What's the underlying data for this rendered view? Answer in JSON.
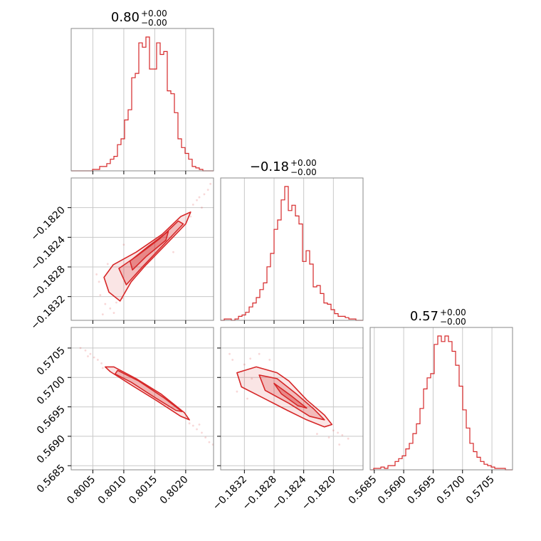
{
  "colors": {
    "accent": "#d62728",
    "frame": "#888888",
    "grid": "#c8c8c8"
  },
  "chart_data": {
    "type": "corner",
    "parameters": [
      "p1",
      "p2",
      "p3"
    ],
    "titles": [
      {
        "value": "0.80",
        "upper": "+0.00",
        "lower": "−0.00"
      },
      {
        "value": "−0.18",
        "upper": "+0.00",
        "lower": "−0.00"
      },
      {
        "value": "0.57",
        "upper": "+0.00",
        "lower": "−0.00"
      }
    ],
    "ranges": [
      [
        0.80015,
        0.80245
      ],
      [
        -0.18352,
        -0.1816
      ],
      [
        0.56843,
        0.57085
      ]
    ],
    "ticks": [
      {
        "values": [
          0.8005,
          0.801,
          0.8015,
          0.802
        ],
        "labels": [
          "0.8005",
          "0.8010",
          "0.8015",
          "0.8020"
        ]
      },
      {
        "values": [
          -0.1832,
          -0.1828,
          -0.1824,
          -0.182
        ],
        "labels": [
          "−0.1832",
          "−0.1828",
          "−0.1824",
          "−0.1820"
        ]
      },
      {
        "values": [
          0.5685,
          0.569,
          0.5695,
          0.57,
          0.5705
        ],
        "labels": [
          "0.5685",
          "0.5690",
          "0.5695",
          "0.5700",
          "0.5705"
        ]
      }
    ],
    "histograms": [
      {
        "edges_start": 0.80015,
        "bin_width": 5.75e-05,
        "counts": [
          0,
          0,
          0,
          0,
          0,
          0,
          1,
          1,
          3,
          3,
          5,
          8,
          10,
          18,
          22,
          35,
          42,
          64,
          67,
          88,
          85,
          92,
          70,
          70,
          88,
          80,
          82,
          55,
          53,
          40,
          22,
          16,
          12,
          8,
          3,
          2,
          1,
          0,
          0,
          0
        ]
      },
      {
        "edges_start": -0.18352,
        "bin_width": 4.8e-05,
        "counts": [
          0,
          1,
          1,
          0,
          1,
          3,
          4,
          6,
          10,
          13,
          17,
          23,
          28,
          40,
          50,
          68,
          75,
          90,
          100,
          82,
          86,
          78,
          72,
          44,
          52,
          42,
          25,
          26,
          20,
          13,
          12,
          8,
          5,
          3,
          3,
          2,
          1,
          1,
          0,
          0
        ]
      },
      {
        "edges_start": 0.56843,
        "bin_width": 6.05e-05,
        "counts": [
          0,
          1,
          1,
          2,
          1,
          3,
          3,
          6,
          8,
          10,
          15,
          19,
          26,
          33,
          44,
          58,
          66,
          69,
          90,
          96,
          92,
          96,
          92,
          85,
          75,
          60,
          43,
          30,
          19,
          13,
          9,
          6,
          4,
          3,
          2,
          1,
          1,
          1,
          0,
          0
        ]
      }
    ],
    "contours_2d": [
      {
        "x_param": "p1",
        "y_param": "p2",
        "levels": [
          {
            "fill": 0.12,
            "points": [
              [
                0.80068,
                -0.18294
              ],
              [
                0.80083,
                -0.18277
              ],
              [
                0.8012,
                -0.1826
              ],
              [
                0.80162,
                -0.18236
              ],
              [
                0.80192,
                -0.18212
              ],
              [
                0.80208,
                -0.18206
              ],
              [
                0.802,
                -0.18222
              ],
              [
                0.8017,
                -0.18248
              ],
              [
                0.80135,
                -0.18278
              ],
              [
                0.80112,
                -0.183
              ],
              [
                0.80094,
                -0.18326
              ],
              [
                0.80076,
                -0.18314
              ]
            ]
          },
          {
            "fill": 0.22,
            "points": [
              [
                0.80092,
                -0.18282
              ],
              [
                0.8012,
                -0.18266
              ],
              [
                0.80158,
                -0.18242
              ],
              [
                0.80188,
                -0.18218
              ],
              [
                0.80196,
                -0.18222
              ],
              [
                0.80162,
                -0.18252
              ],
              [
                0.8013,
                -0.1828
              ],
              [
                0.80104,
                -0.18304
              ]
            ]
          },
          {
            "fill": 0.35,
            "points": [
              [
                0.8011,
                -0.18272
              ],
              [
                0.8014,
                -0.18252
              ],
              [
                0.80172,
                -0.18232
              ],
              [
                0.80168,
                -0.18244
              ],
              [
                0.80136,
                -0.18266
              ],
              [
                0.80114,
                -0.18284
              ]
            ]
          }
        ],
        "scatter": [
          [
            0.8006,
            -0.183
          ],
          [
            0.80062,
            -0.18318
          ],
          [
            0.8007,
            -0.1833
          ],
          [
            0.80078,
            -0.18336
          ],
          [
            0.80084,
            -0.18342
          ],
          [
            0.80088,
            -0.18328
          ],
          [
            0.80056,
            -0.1829
          ],
          [
            0.80074,
            -0.18276
          ],
          [
            0.80098,
            -0.18322
          ],
          [
            0.80212,
            -0.18196
          ],
          [
            0.80218,
            -0.1819
          ],
          [
            0.80222,
            -0.18186
          ],
          [
            0.8023,
            -0.18182
          ],
          [
            0.80236,
            -0.18176
          ],
          [
            0.80226,
            -0.182
          ],
          [
            0.80208,
            -0.18212
          ],
          [
            0.801,
            -0.1825
          ],
          [
            0.8018,
            -0.1826
          ],
          [
            0.80066,
            -0.18344
          ],
          [
            0.8024,
            -0.18168
          ]
        ]
      },
      {
        "x_param": "p1",
        "y_param": "p3",
        "levels": [
          {
            "fill": 0.12,
            "points": [
              [
                0.8007,
                0.57018
              ],
              [
                0.80084,
                0.57018
              ],
              [
                0.8012,
                0.56998
              ],
              [
                0.8016,
                0.56972
              ],
              [
                0.80198,
                0.5694
              ],
              [
                0.80206,
                0.56928
              ],
              [
                0.80192,
                0.56934
              ],
              [
                0.80154,
                0.5696
              ],
              [
                0.80114,
                0.56986
              ],
              [
                0.80078,
                0.5701
              ]
            ]
          },
          {
            "fill": 0.25,
            "points": [
              [
                0.8009,
                0.57012
              ],
              [
                0.80124,
                0.56994
              ],
              [
                0.80164,
                0.56966
              ],
              [
                0.80194,
                0.56942
              ],
              [
                0.80184,
                0.56944
              ],
              [
                0.8015,
                0.56966
              ],
              [
                0.80112,
                0.56992
              ],
              [
                0.80086,
                0.57006
              ]
            ]
          }
        ],
        "scatter": [
          [
            0.8003,
            0.5705
          ],
          [
            0.80038,
            0.57046
          ],
          [
            0.80046,
            0.5704
          ],
          [
            0.80052,
            0.57034
          ],
          [
            0.80058,
            0.5703
          ],
          [
            0.80064,
            0.57024
          ],
          [
            0.80066,
            0.57016
          ],
          [
            0.80212,
            0.56918
          ],
          [
            0.80218,
            0.56912
          ],
          [
            0.80226,
            0.56906
          ],
          [
            0.80232,
            0.56898
          ],
          [
            0.80238,
            0.5689
          ],
          [
            0.80244,
            0.56886
          ],
          [
            0.80206,
            0.56922
          ],
          [
            0.80042,
            0.57036
          ],
          [
            0.80222,
            0.5692
          ]
        ]
      },
      {
        "x_param": "p2",
        "y_param": "p3",
        "levels": [
          {
            "fill": 0.12,
            "points": [
              [
                -0.1833,
                0.57008
              ],
              [
                -0.18304,
                0.57018
              ],
              [
                -0.18276,
                0.57008
              ],
              [
                -0.1826,
                0.56994
              ],
              [
                -0.18236,
                0.56962
              ],
              [
                -0.18212,
                0.56936
              ],
              [
                -0.18202,
                0.5692
              ],
              [
                -0.18212,
                0.56916
              ],
              [
                -0.18236,
                0.56928
              ],
              [
                -0.18262,
                0.56944
              ],
              [
                -0.18296,
                0.56966
              ],
              [
                -0.18324,
                0.56984
              ]
            ]
          },
          {
            "fill": 0.22,
            "points": [
              [
                -0.183,
                0.57004
              ],
              [
                -0.18276,
                0.56998
              ],
              [
                -0.1825,
                0.56972
              ],
              [
                -0.18226,
                0.56946
              ],
              [
                -0.18212,
                0.56928
              ],
              [
                -0.18232,
                0.56934
              ],
              [
                -0.1826,
                0.56956
              ],
              [
                -0.18292,
                0.56978
              ]
            ]
          },
          {
            "fill": 0.35,
            "points": [
              [
                -0.1828,
                0.5699
              ],
              [
                -0.18256,
                0.56968
              ],
              [
                -0.18236,
                0.56948
              ],
              [
                -0.18248,
                0.56952
              ],
              [
                -0.1827,
                0.56972
              ]
            ]
          }
        ],
        "scatter": [
          [
            -0.1834,
            0.5704
          ],
          [
            -0.18336,
            0.5703
          ],
          [
            -0.1832,
            0.57022
          ],
          [
            -0.18312,
            0.57032
          ],
          [
            -0.183,
            0.5704
          ],
          [
            -0.18286,
            0.5703
          ],
          [
            -0.1833,
            0.56976
          ],
          [
            -0.18316,
            0.56964
          ],
          [
            -0.182,
            0.5691
          ],
          [
            -0.18194,
            0.56906
          ],
          [
            -0.18188,
            0.56902
          ],
          [
            -0.18192,
            0.56886
          ],
          [
            -0.1818,
            0.56896
          ],
          [
            -0.18206,
            0.56898
          ],
          [
            -0.18222,
            0.56904
          ],
          [
            -0.1831,
            0.56998
          ]
        ]
      }
    ]
  }
}
